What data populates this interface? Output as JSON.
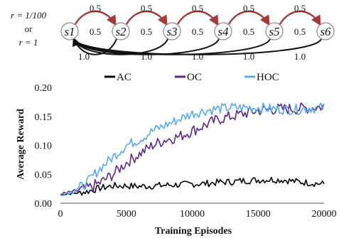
{
  "diagram": {
    "condition_line1": "r = 1/100",
    "condition_line2": "or",
    "condition_line3": "r = 1",
    "states": [
      "s1",
      "s2",
      "s3",
      "s4",
      "s5",
      "s6"
    ],
    "forward_labels": [
      "0.5",
      "0.5",
      "0.5",
      "0.5",
      "0.5"
    ],
    "self_labels": [
      "0.5",
      "0.5",
      "0.5",
      "0.5",
      "0.5"
    ],
    "back_labels": [
      "1.0",
      "1.0",
      "1.0",
      "1.0",
      "1.0"
    ],
    "colors": {
      "forward": "#a33a3a",
      "back": "#111111",
      "state_border": "#888888"
    }
  },
  "chart_data": {
    "type": "line",
    "xlabel": "Training Episodes",
    "ylabel": "Average Reward",
    "xlim": [
      0,
      20000
    ],
    "ylim": [
      0,
      0.2
    ],
    "xticks": [
      "0",
      "5000",
      "10000",
      "15000",
      "20000"
    ],
    "yticks": [
      "0.00",
      "0.05",
      "0.10",
      "0.15",
      "0.20"
    ],
    "grid": false,
    "legend_position": "top",
    "series": [
      {
        "name": "AC",
        "color": "#000000",
        "x": [
          0,
          1000,
          2000,
          3000,
          4000,
          5000,
          6000,
          7000,
          8000,
          9000,
          10000,
          11000,
          12000,
          13000,
          14000,
          15000,
          16000,
          17000,
          18000,
          19000,
          20000
        ],
        "y": [
          0.015,
          0.017,
          0.02,
          0.026,
          0.03,
          0.03,
          0.029,
          0.03,
          0.031,
          0.032,
          0.033,
          0.034,
          0.036,
          0.037,
          0.039,
          0.04,
          0.041,
          0.04,
          0.037,
          0.035,
          0.033
        ]
      },
      {
        "name": "OC",
        "color": "#5b2a86",
        "x": [
          0,
          1000,
          2000,
          3000,
          4000,
          5000,
          6000,
          7000,
          8000,
          9000,
          10000,
          11000,
          12000,
          13000,
          14000,
          15000,
          16000,
          17000,
          18000,
          19000,
          20000
        ],
        "y": [
          0.015,
          0.02,
          0.025,
          0.035,
          0.05,
          0.07,
          0.085,
          0.1,
          0.11,
          0.115,
          0.125,
          0.135,
          0.145,
          0.15,
          0.155,
          0.16,
          0.162,
          0.163,
          0.163,
          0.165,
          0.167
        ]
      },
      {
        "name": "HOC",
        "color": "#5aaaf0",
        "x": [
          0,
          1000,
          2000,
          3000,
          4000,
          5000,
          6000,
          7000,
          8000,
          9000,
          10000,
          11000,
          12000,
          13000,
          14000,
          15000,
          16000,
          17000,
          18000,
          19000,
          20000
        ],
        "y": [
          0.015,
          0.02,
          0.035,
          0.06,
          0.08,
          0.1,
          0.11,
          0.125,
          0.135,
          0.145,
          0.155,
          0.16,
          0.163,
          0.165,
          0.165,
          0.165,
          0.163,
          0.162,
          0.162,
          0.164,
          0.165
        ]
      }
    ]
  }
}
